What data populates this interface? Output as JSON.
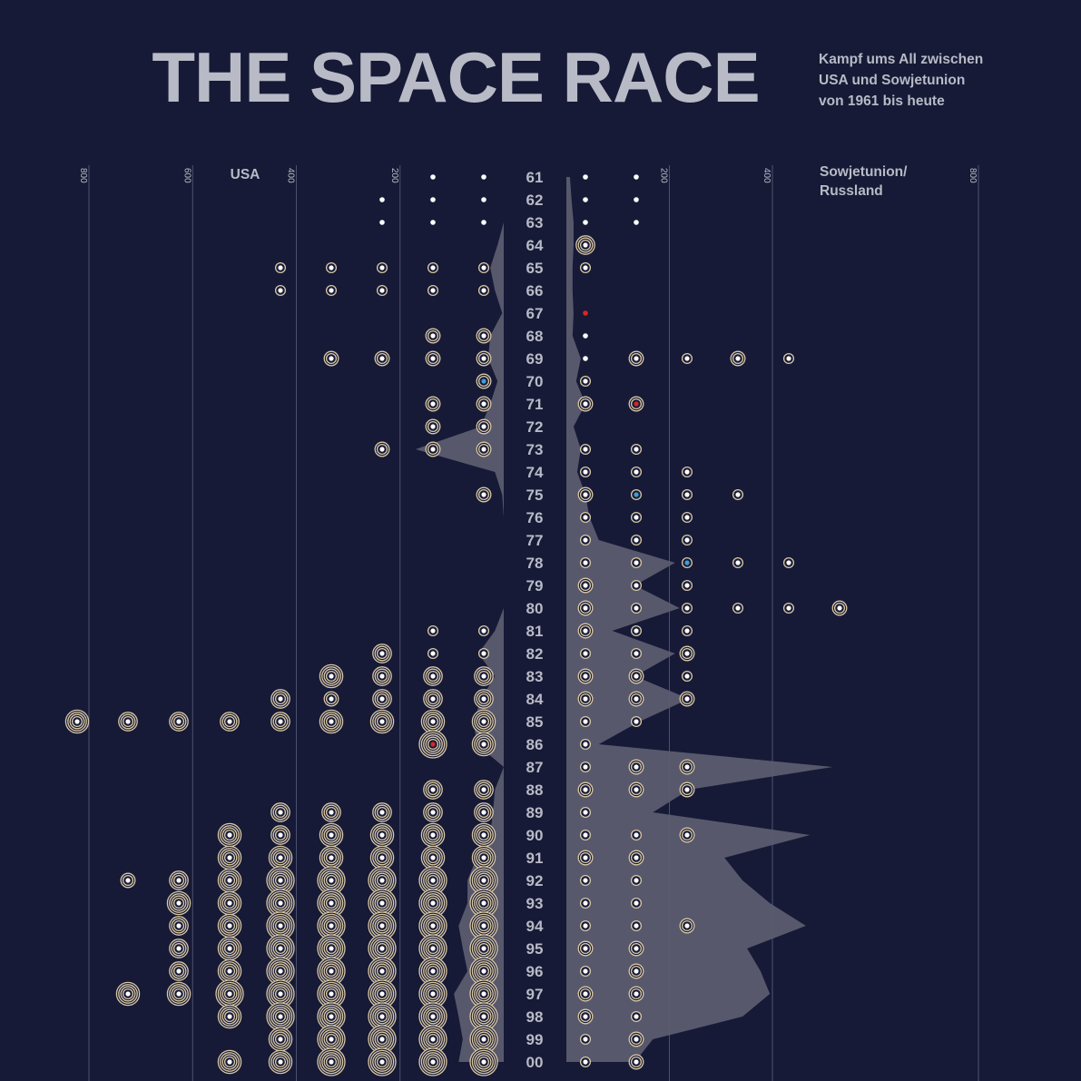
{
  "chart_data": {
    "type": "mirrored-dot-area",
    "title": "THE SPACE RACE",
    "subtitle": [
      "Kampf ums All zwischen",
      "USA und Sowjetunion",
      "von 1961 bis heute"
    ],
    "categories": [
      "61",
      "62",
      "63",
      "64",
      "65",
      "66",
      "67",
      "68",
      "69",
      "70",
      "71",
      "72",
      "73",
      "74",
      "75",
      "76",
      "77",
      "78",
      "79",
      "80",
      "81",
      "82",
      "83",
      "84",
      "85",
      "86",
      "87",
      "88",
      "89",
      "90",
      "91",
      "92",
      "93",
      "94",
      "95",
      "96",
      "97",
      "98",
      "99",
      "00"
    ],
    "xlim": [
      0,
      800
    ],
    "left": {
      "name": [
        "USA"
      ],
      "xticks": [
        200,
        400,
        600,
        800
      ],
      "area_color": "#5b5c70",
      "dot_color": "#ffffff",
      "ring_color": "#d9c8a6",
      "area": [
        0,
        0,
        0,
        12,
        26,
        17,
        3,
        26,
        30,
        12,
        26,
        44,
        170,
        17,
        3,
        0,
        0,
        0,
        0,
        0,
        17,
        49,
        17,
        44,
        58,
        52,
        0,
        17,
        21,
        26,
        52,
        70,
        70,
        87,
        79,
        70,
        96,
        87,
        79,
        87
      ],
      "missions": [
        [
          0,
          0
        ],
        [
          0,
          0,
          0
        ],
        [
          0,
          0,
          0
        ],
        [],
        [
          1,
          1,
          1,
          1,
          1
        ],
        [
          1,
          1,
          1,
          1,
          1
        ],
        [],
        [
          2,
          2
        ],
        [
          2,
          2,
          2,
          2
        ],
        [
          2
        ],
        [
          2,
          2
        ],
        [
          2,
          2
        ],
        [
          2,
          2,
          2
        ],
        [],
        [
          2
        ],
        [],
        [],
        [],
        [],
        [],
        [
          1,
          1
        ],
        [
          1,
          1,
          3
        ],
        [
          3,
          3,
          3,
          4
        ],
        [
          3,
          3,
          3,
          2,
          3
        ],
        [
          4,
          4,
          4,
          4,
          3,
          3,
          3,
          3,
          4
        ],
        [
          4,
          5
        ],
        [],
        [
          3,
          3
        ],
        [
          3,
          3,
          3,
          3,
          3
        ],
        [
          4,
          4,
          4,
          4,
          3,
          4
        ],
        [
          4,
          4,
          4,
          4,
          4,
          4
        ],
        [
          5,
          5,
          5,
          5,
          5,
          4,
          3,
          2
        ],
        [
          5,
          5,
          5,
          5,
          5,
          4,
          4
        ],
        [
          5,
          5,
          5,
          5,
          5,
          4,
          3
        ],
        [
          5,
          5,
          5,
          5,
          5,
          4,
          3
        ],
        [
          5,
          5,
          5,
          5,
          5,
          4,
          3
        ],
        [
          5,
          5,
          5,
          5,
          5,
          5,
          4,
          4
        ],
        [
          5,
          5,
          5,
          5,
          5,
          4
        ],
        [
          5,
          5,
          5,
          5,
          4
        ],
        [
          5,
          5,
          5,
          5,
          4,
          4
        ]
      ],
      "highlights": [
        {
          "category_index": 9,
          "mission": 0,
          "color": "#3a9fd6"
        },
        {
          "category_index": 25,
          "mission": 1,
          "color": "#d92626"
        }
      ]
    },
    "right": {
      "name": [
        "Sowjetunion/",
        "Russland"
      ],
      "xticks": [
        200,
        400,
        800
      ],
      "area_color": "#5b5c70",
      "dot_color": "#ffffff",
      "ring_color": "#d9c8a6",
      "area": [
        7,
        10,
        14,
        14,
        12,
        12,
        14,
        12,
        28,
        19,
        37,
        14,
        28,
        21,
        37,
        45,
        63,
        211,
        133,
        220,
        89,
        211,
        133,
        238,
        142,
        63,
        517,
        238,
        168,
        473,
        307,
        342,
        395,
        465,
        351,
        377,
        395,
        342,
        168,
        133
      ],
      "missions": [
        [
          0,
          0
        ],
        [
          0,
          0
        ],
        [
          0,
          0
        ],
        [
          3
        ],
        [
          1
        ],
        [],
        [
          0
        ],
        [
          0
        ],
        [
          0,
          2,
          1,
          2,
          1
        ],
        [
          1
        ],
        [
          2,
          2
        ],
        [],
        [
          1,
          1
        ],
        [
          1,
          1,
          1
        ],
        [
          2,
          1,
          1,
          1
        ],
        [
          1,
          1,
          1
        ],
        [
          1,
          1,
          1
        ],
        [
          1,
          1,
          1,
          1,
          1
        ],
        [
          2,
          1,
          1
        ],
        [
          2,
          1,
          1,
          1,
          1,
          2
        ],
        [
          2,
          1,
          1
        ],
        [
          1,
          1,
          2
        ],
        [
          2,
          2,
          1
        ],
        [
          2,
          2,
          2
        ],
        [
          1,
          1
        ],
        [
          1
        ],
        [
          1,
          2,
          2
        ],
        [
          2,
          2,
          2
        ],
        [
          1
        ],
        [
          1,
          1,
          2
        ],
        [
          2,
          2
        ],
        [
          1,
          1
        ],
        [
          1,
          1
        ],
        [
          1,
          1,
          2
        ],
        [
          2,
          2
        ],
        [
          1,
          2
        ],
        [
          2,
          2
        ],
        [
          2,
          1
        ],
        [
          1,
          2
        ],
        [
          1,
          2
        ]
      ],
      "highlights": [
        {
          "category_index": 6,
          "mission": 0,
          "color": "#d92626"
        },
        {
          "category_index": 10,
          "mission": 1,
          "color": "#d92626"
        },
        {
          "category_index": 14,
          "mission": 1,
          "color": "#3a9fd6"
        },
        {
          "category_index": 17,
          "mission": 2,
          "color": "#3a9fd6"
        }
      ]
    }
  }
}
